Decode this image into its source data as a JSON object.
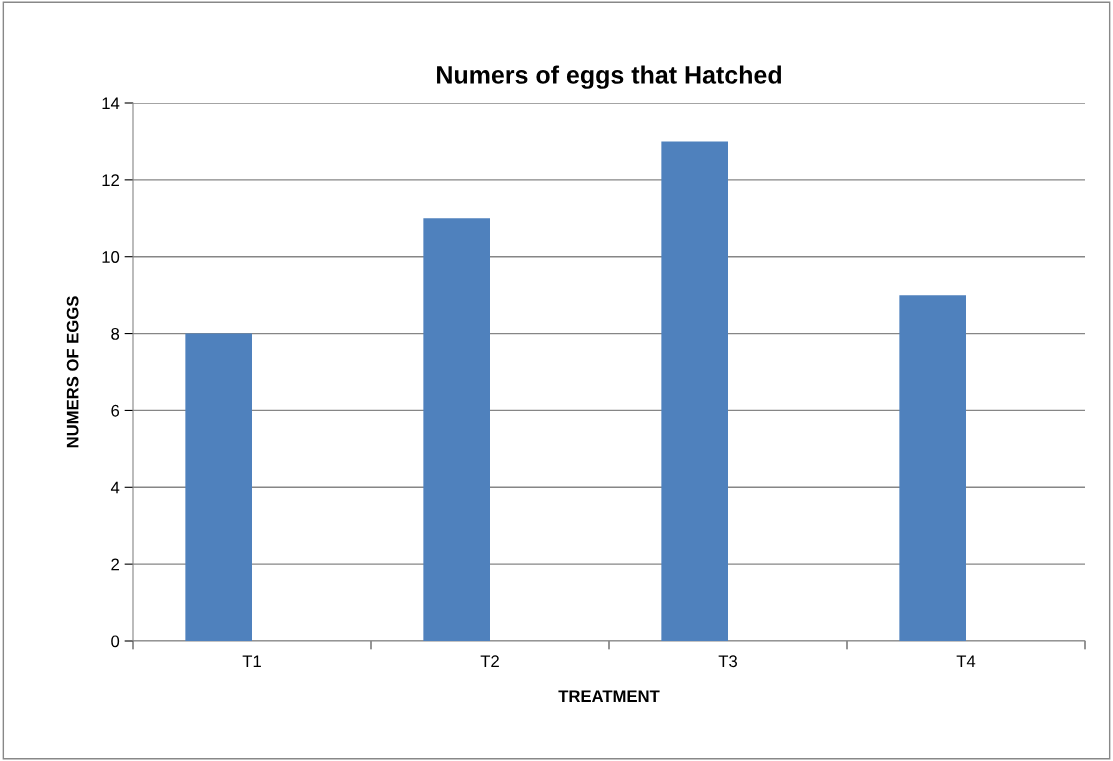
{
  "chart_data": {
    "type": "bar",
    "title": "Numers of eggs that Hatched",
    "xlabel": "TREATMENT",
    "ylabel": "NUMERS OF EGGS",
    "categories": [
      "T1",
      "T2",
      "T3",
      "T4"
    ],
    "values": [
      8,
      11,
      13,
      9
    ],
    "color": "#4f81bd",
    "ylim": [
      0,
      14
    ],
    "yticks": [
      0,
      2,
      4,
      6,
      8,
      10,
      12,
      14
    ],
    "grid": "y"
  }
}
